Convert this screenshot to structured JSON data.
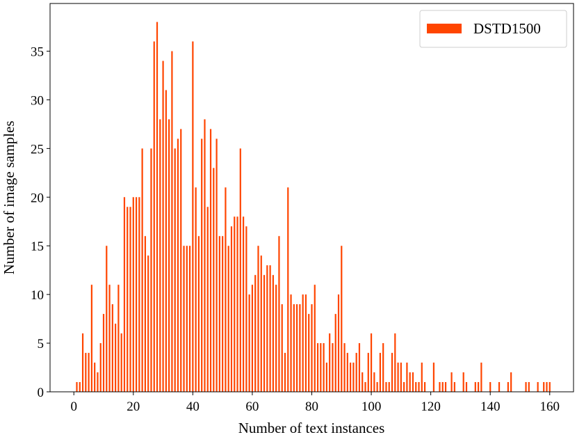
{
  "chart_data": {
    "type": "bar",
    "xlabel": "Number of text instances",
    "ylabel": "Number of image samples",
    "x": [
      1,
      2,
      3,
      4,
      5,
      6,
      7,
      8,
      9,
      10,
      11,
      12,
      13,
      14,
      15,
      16,
      17,
      18,
      19,
      20,
      21,
      22,
      23,
      24,
      25,
      26,
      27,
      28,
      29,
      30,
      31,
      32,
      33,
      34,
      35,
      36,
      37,
      38,
      39,
      40,
      41,
      42,
      43,
      44,
      45,
      46,
      47,
      48,
      49,
      50,
      51,
      52,
      53,
      54,
      55,
      56,
      57,
      58,
      59,
      60,
      61,
      62,
      63,
      64,
      65,
      66,
      67,
      68,
      69,
      70,
      71,
      72,
      73,
      74,
      75,
      76,
      77,
      78,
      79,
      80,
      81,
      82,
      83,
      84,
      85,
      86,
      87,
      88,
      89,
      90,
      91,
      92,
      93,
      94,
      95,
      96,
      97,
      98,
      99,
      100,
      101,
      102,
      103,
      104,
      105,
      106,
      107,
      108,
      109,
      110,
      111,
      112,
      113,
      114,
      115,
      116,
      117,
      118,
      121,
      123,
      124,
      125,
      127,
      128,
      131,
      132,
      135,
      136,
      137,
      140,
      143,
      146,
      147,
      152,
      153,
      156,
      158,
      159,
      160
    ],
    "series": [
      {
        "name": "DSTD1500",
        "color": "#ff4500",
        "values": [
          1,
          1,
          6,
          4,
          4,
          11,
          3,
          2,
          5,
          8,
          15,
          11,
          9,
          7,
          11,
          6,
          20,
          19,
          19,
          20,
          20,
          20,
          25,
          16,
          14,
          25,
          36,
          38,
          28,
          34,
          31,
          28,
          35,
          25,
          26,
          27,
          15,
          15,
          15,
          36,
          21,
          16,
          26,
          28,
          19,
          27,
          23,
          26,
          16,
          16,
          21,
          15,
          17,
          18,
          18,
          25,
          18,
          17,
          10,
          11,
          12,
          15,
          14,
          12,
          13,
          13,
          12,
          11,
          16,
          9,
          4,
          21,
          10,
          9,
          9,
          9,
          10,
          10,
          8,
          9,
          11,
          5,
          5,
          5,
          3,
          6,
          5,
          8,
          10,
          15,
          5,
          4,
          3,
          3,
          4,
          5,
          2,
          1,
          4,
          6,
          2,
          1,
          4,
          5,
          1,
          1,
          4,
          6,
          3,
          3,
          1,
          3,
          2,
          2,
          1,
          1,
          3,
          1,
          3,
          1,
          1,
          1,
          2,
          1,
          2,
          1,
          1,
          1,
          3,
          1,
          1,
          1,
          2,
          1,
          1,
          1,
          1,
          1,
          1
        ]
      }
    ],
    "xlim": [
      -8,
      168
    ],
    "ylim": [
      0,
      39.9
    ],
    "xticks": [
      0,
      20,
      40,
      60,
      80,
      100,
      120,
      140,
      160
    ],
    "yticks": [
      0,
      5,
      10,
      15,
      20,
      25,
      30,
      35
    ],
    "legend": "upper right"
  }
}
